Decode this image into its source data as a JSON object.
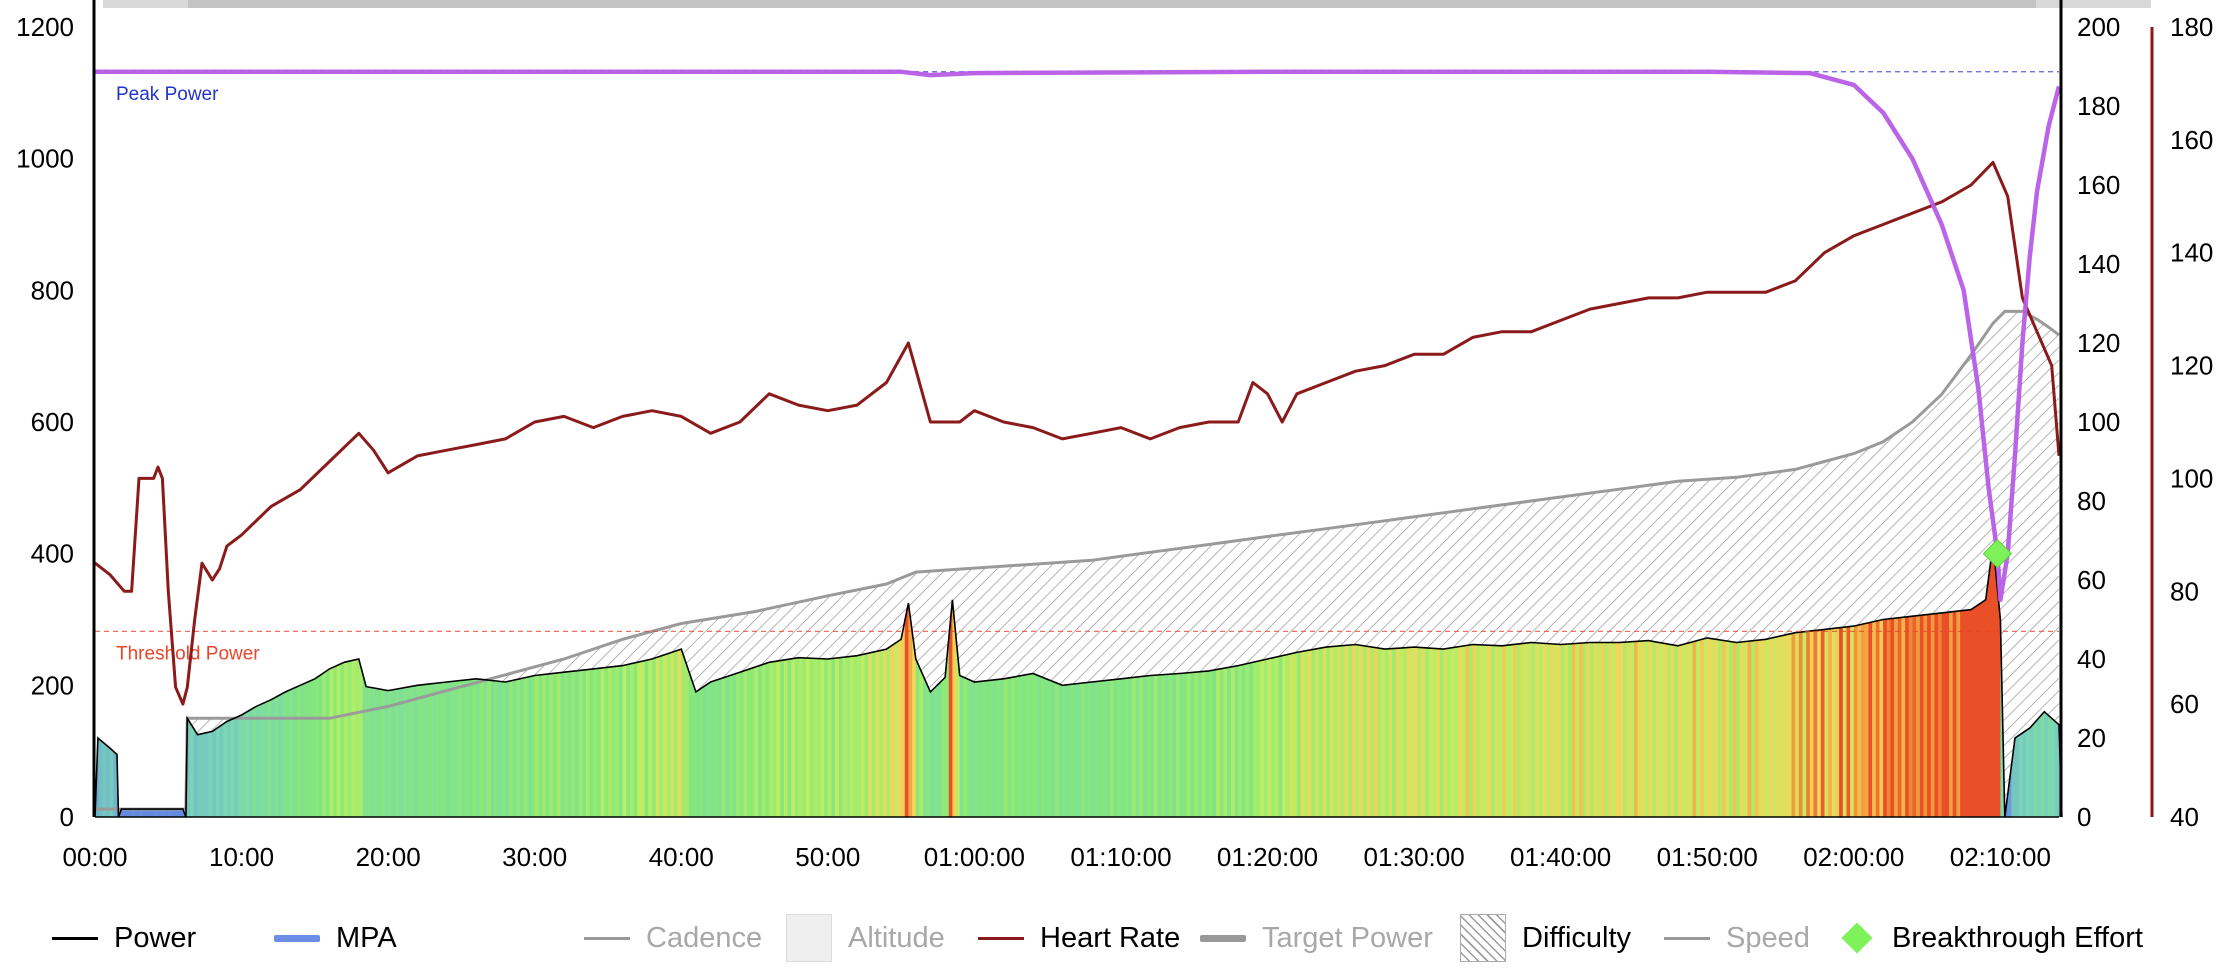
{
  "chart_data": {
    "type": "line",
    "x_ticks": [
      "00:00",
      "10:00",
      "20:00",
      "30:00",
      "40:00",
      "50:00",
      "01:00:00",
      "01:10:00",
      "01:20:00",
      "01:30:00",
      "01:40:00",
      "01:50:00",
      "02:00:00",
      "02:10:00"
    ],
    "x_unit": "minutes",
    "x_range": [
      0,
      134
    ],
    "axes": {
      "power": {
        "ticks": [
          "0",
          "200",
          "400",
          "600",
          "800",
          "1000",
          "1200"
        ],
        "range": [
          0,
          1200
        ]
      },
      "difficulty": {
        "ticks": [
          "0",
          "20",
          "40",
          "60",
          "80",
          "100",
          "120",
          "140",
          "160",
          "180",
          "200"
        ],
        "range": [
          0,
          200
        ]
      },
      "heart_rate": {
        "ticks": [
          "40",
          "60",
          "80",
          "100",
          "120",
          "140",
          "160",
          "180"
        ],
        "range": [
          40,
          180
        ],
        "color": "#8b1a1a"
      }
    },
    "reference_lines": [
      {
        "label": "Peak Power",
        "value": 1132,
        "color": "#2233cc"
      },
      {
        "label": "Threshold Power",
        "value": 282,
        "color": "#e8452a"
      }
    ],
    "series": [
      {
        "name": "Power",
        "color": "#000000",
        "points": [
          [
            0,
            0
          ],
          [
            0.2,
            120
          ],
          [
            1,
            105
          ],
          [
            1.5,
            95
          ],
          [
            1.6,
            0
          ],
          [
            1.8,
            12
          ],
          [
            6,
            12
          ],
          [
            6.2,
            0
          ],
          [
            6.3,
            150
          ],
          [
            7,
            125
          ],
          [
            8,
            130
          ],
          [
            9,
            145
          ],
          [
            10,
            155
          ],
          [
            11,
            168
          ],
          [
            12,
            178
          ],
          [
            13,
            190
          ],
          [
            14,
            200
          ],
          [
            15,
            210
          ],
          [
            16,
            225
          ],
          [
            17,
            235
          ],
          [
            18,
            240
          ],
          [
            18.5,
            198
          ],
          [
            20,
            192
          ],
          [
            22,
            200
          ],
          [
            24,
            205
          ],
          [
            26,
            210
          ],
          [
            28,
            205
          ],
          [
            30,
            215
          ],
          [
            32,
            220
          ],
          [
            34,
            225
          ],
          [
            36,
            230
          ],
          [
            38,
            240
          ],
          [
            40,
            255
          ],
          [
            41,
            190
          ],
          [
            42,
            205
          ],
          [
            44,
            220
          ],
          [
            46,
            235
          ],
          [
            48,
            242
          ],
          [
            50,
            240
          ],
          [
            52,
            245
          ],
          [
            54,
            255
          ],
          [
            55,
            270
          ],
          [
            55.5,
            325
          ],
          [
            56,
            240
          ],
          [
            57,
            190
          ],
          [
            58,
            212
          ],
          [
            58.5,
            330
          ],
          [
            59,
            215
          ],
          [
            60,
            205
          ],
          [
            62,
            210
          ],
          [
            64,
            218
          ],
          [
            66,
            200
          ],
          [
            68,
            205
          ],
          [
            70,
            210
          ],
          [
            72,
            215
          ],
          [
            74,
            218
          ],
          [
            76,
            222
          ],
          [
            78,
            230
          ],
          [
            80,
            240
          ],
          [
            82,
            250
          ],
          [
            84,
            258
          ],
          [
            86,
            262
          ],
          [
            88,
            255
          ],
          [
            90,
            258
          ],
          [
            92,
            255
          ],
          [
            94,
            262
          ],
          [
            96,
            260
          ],
          [
            98,
            265
          ],
          [
            100,
            262
          ],
          [
            102,
            265
          ],
          [
            104,
            265
          ],
          [
            106,
            268
          ],
          [
            108,
            260
          ],
          [
            110,
            272
          ],
          [
            112,
            265
          ],
          [
            114,
            270
          ],
          [
            116,
            280
          ],
          [
            118,
            285
          ],
          [
            120,
            290
          ],
          [
            122,
            300
          ],
          [
            124,
            305
          ],
          [
            126,
            310
          ],
          [
            128,
            315
          ],
          [
            129,
            330
          ],
          [
            129.5,
            415
          ],
          [
            130,
            300
          ],
          [
            130.3,
            0
          ],
          [
            131,
            120
          ],
          [
            132,
            135
          ],
          [
            133,
            160
          ],
          [
            134,
            140
          ],
          [
            134.2,
            0
          ]
        ]
      },
      {
        "name": "Heart Rate",
        "color": "#8b1a1a",
        "points": [
          [
            0,
            85
          ],
          [
            1,
            83
          ],
          [
            2,
            80
          ],
          [
            2.5,
            80
          ],
          [
            3,
            100
          ],
          [
            4,
            100
          ],
          [
            4.3,
            102
          ],
          [
            4.6,
            100
          ],
          [
            5,
            80
          ],
          [
            5.5,
            63
          ],
          [
            6,
            60
          ],
          [
            6.3,
            63
          ],
          [
            6.8,
            75
          ],
          [
            7.3,
            85
          ],
          [
            8,
            82
          ],
          [
            8.5,
            84
          ],
          [
            9,
            88
          ],
          [
            10,
            90
          ],
          [
            12,
            95
          ],
          [
            14,
            98
          ],
          [
            16,
            103
          ],
          [
            18,
            108
          ],
          [
            19,
            105
          ],
          [
            20,
            101
          ],
          [
            22,
            104
          ],
          [
            24,
            105
          ],
          [
            26,
            106
          ],
          [
            28,
            107
          ],
          [
            30,
            110
          ],
          [
            32,
            111
          ],
          [
            34,
            109
          ],
          [
            36,
            111
          ],
          [
            38,
            112
          ],
          [
            40,
            111
          ],
          [
            42,
            108
          ],
          [
            44,
            110
          ],
          [
            46,
            115
          ],
          [
            48,
            113
          ],
          [
            50,
            112
          ],
          [
            52,
            113
          ],
          [
            54,
            117
          ],
          [
            55.5,
            124
          ],
          [
            57,
            110
          ],
          [
            59,
            110
          ],
          [
            60,
            112
          ],
          [
            62,
            110
          ],
          [
            64,
            109
          ],
          [
            66,
            107
          ],
          [
            68,
            108
          ],
          [
            70,
            109
          ],
          [
            72,
            107
          ],
          [
            74,
            109
          ],
          [
            76,
            110
          ],
          [
            78,
            110
          ],
          [
            79,
            117
          ],
          [
            80,
            115
          ],
          [
            81,
            110
          ],
          [
            82,
            115
          ],
          [
            84,
            117
          ],
          [
            86,
            119
          ],
          [
            88,
            120
          ],
          [
            90,
            122
          ],
          [
            92,
            122
          ],
          [
            94,
            125
          ],
          [
            96,
            126
          ],
          [
            98,
            126
          ],
          [
            100,
            128
          ],
          [
            102,
            130
          ],
          [
            104,
            131
          ],
          [
            106,
            132
          ],
          [
            108,
            132
          ],
          [
            110,
            133
          ],
          [
            112,
            133
          ],
          [
            114,
            133
          ],
          [
            116,
            135
          ],
          [
            118,
            140
          ],
          [
            120,
            143
          ],
          [
            122,
            145
          ],
          [
            124,
            147
          ],
          [
            126,
            149
          ],
          [
            128,
            152
          ],
          [
            129.5,
            156
          ],
          [
            130.5,
            150
          ],
          [
            131.5,
            132
          ],
          [
            132.5,
            126
          ],
          [
            133.5,
            120
          ],
          [
            134,
            104
          ]
        ]
      },
      {
        "name": "MPA",
        "color": "#b85ce6",
        "points": [
          [
            0,
            1132
          ],
          [
            55,
            1132
          ],
          [
            57,
            1127
          ],
          [
            60,
            1130
          ],
          [
            80,
            1132
          ],
          [
            110,
            1132
          ],
          [
            117,
            1130
          ],
          [
            120,
            1112
          ],
          [
            122,
            1070
          ],
          [
            124,
            1000
          ],
          [
            126,
            900
          ],
          [
            127.5,
            800
          ],
          [
            128.5,
            650
          ],
          [
            129.2,
            500
          ],
          [
            129.8,
            400
          ],
          [
            130,
            330
          ],
          [
            130.5,
            400
          ],
          [
            131,
            550
          ],
          [
            131.5,
            720
          ],
          [
            132,
            850
          ],
          [
            132.5,
            950
          ],
          [
            133.3,
            1050
          ],
          [
            134,
            1110
          ]
        ]
      },
      {
        "name": "Difficulty",
        "color": "#999999",
        "points": [
          [
            0,
            2
          ],
          [
            6.2,
            2
          ],
          [
            6.3,
            25
          ],
          [
            16,
            25
          ],
          [
            20,
            28
          ],
          [
            24,
            32
          ],
          [
            28,
            36
          ],
          [
            32,
            40
          ],
          [
            36,
            45
          ],
          [
            40,
            49
          ],
          [
            45,
            52
          ],
          [
            50,
            56
          ],
          [
            54,
            59
          ],
          [
            56,
            62
          ],
          [
            60,
            63
          ],
          [
            64,
            64
          ],
          [
            68,
            65
          ],
          [
            72,
            67
          ],
          [
            76,
            69
          ],
          [
            80,
            71
          ],
          [
            84,
            73
          ],
          [
            88,
            75
          ],
          [
            92,
            77
          ],
          [
            96,
            79
          ],
          [
            100,
            81
          ],
          [
            104,
            83
          ],
          [
            108,
            85
          ],
          [
            112,
            86
          ],
          [
            116,
            88
          ],
          [
            118,
            90
          ],
          [
            120,
            92
          ],
          [
            122,
            95
          ],
          [
            124,
            100
          ],
          [
            126,
            107
          ],
          [
            128,
            117
          ],
          [
            129.5,
            125
          ],
          [
            130.3,
            128
          ],
          [
            131.5,
            128
          ],
          [
            132.5,
            126
          ],
          [
            133.3,
            124
          ],
          [
            134,
            122
          ]
        ]
      }
    ],
    "breakthrough_effort": {
      "x": 129.8,
      "power": 400
    },
    "grid": false
  },
  "legend": [
    {
      "key": "power",
      "label": "Power",
      "color": "#000000",
      "active": true
    },
    {
      "key": "mpa",
      "label": "MPA",
      "color": "#6b8ee6",
      "active": true
    },
    {
      "key": "cadence",
      "label": "Cadence",
      "color": "#999999",
      "active": false
    },
    {
      "key": "altitude",
      "label": "Altitude",
      "color": "#efefef",
      "active": false
    },
    {
      "key": "heart_rate",
      "label": "Heart Rate",
      "color": "#8b1a1a",
      "active": true
    },
    {
      "key": "target_power",
      "label": "Target Power",
      "color": "#999999",
      "active": false
    },
    {
      "key": "difficulty",
      "label": "Difficulty",
      "color": "#999999",
      "active": true
    },
    {
      "key": "speed",
      "label": "Speed",
      "color": "#999999",
      "active": false
    },
    {
      "key": "breakthrough_effort",
      "label": "Breakthrough Effort",
      "color": "#7df25a",
      "active": true
    }
  ]
}
